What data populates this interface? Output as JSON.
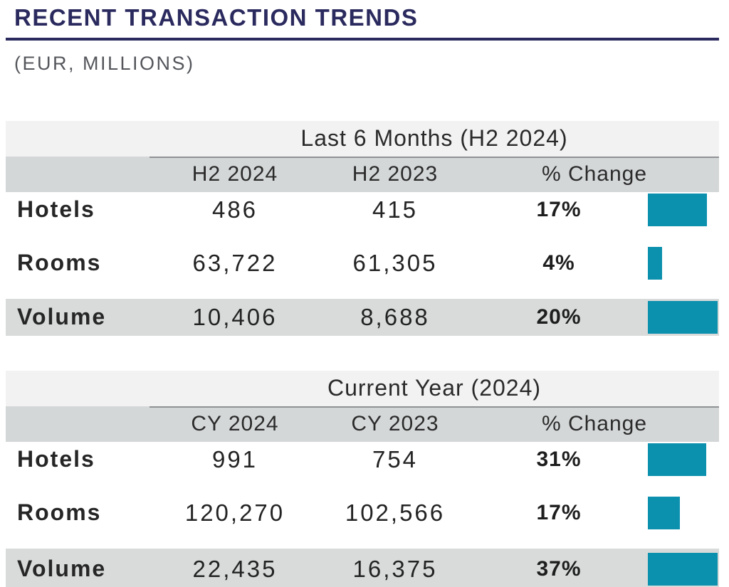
{
  "header": {
    "title": "RECENT TRANSACTION TRENDS",
    "subtitle": "(EUR, MILLIONS)"
  },
  "colors": {
    "navy_accent": "#2b2a5e",
    "teal_bar": "#0b91ae",
    "header_band_gray": "#d4d7d8",
    "title_band_gray": "#f2f2f2",
    "highlight_row_gray": "#d9dbdb"
  },
  "tables": [
    {
      "title": "Last 6 Months (H2 2024)",
      "columns": [
        "H2 2024",
        "H2 2023",
        "% Change"
      ],
      "rows": [
        {
          "label": "Hotels",
          "current": "486",
          "prior": "415",
          "pct_change": "17%",
          "pct_value": 17
        },
        {
          "label": "Rooms",
          "current": "63,722",
          "prior": "61,305",
          "pct_change": "4%",
          "pct_value": 4
        },
        {
          "label": "Volume",
          "current": "10,406",
          "prior": "8,688",
          "pct_change": "20%",
          "pct_value": 20
        }
      ]
    },
    {
      "title": "Current Year (2024)",
      "columns": [
        "CY 2024",
        "CY 2023",
        "% Change"
      ],
      "rows": [
        {
          "label": "Hotels",
          "current": "991",
          "prior": "754",
          "pct_change": "31%",
          "pct_value": 31
        },
        {
          "label": "Rooms",
          "current": "120,270",
          "prior": "102,566",
          "pct_change": "17%",
          "pct_value": 17
        },
        {
          "label": "Volume",
          "current": "22,435",
          "prior": "16,375",
          "pct_change": "37%",
          "pct_value": 37
        }
      ]
    }
  ],
  "chart_data": [
    {
      "type": "table",
      "title": "Last 6 Months (H2 2024)",
      "columns": [
        "",
        "H2 2024",
        "H2 2023",
        "% Change"
      ],
      "rows": [
        [
          "Hotels",
          486,
          415,
          "17%"
        ],
        [
          "Rooms",
          63722,
          61305,
          "4%"
        ],
        [
          "Volume",
          10406,
          8688,
          "20%"
        ]
      ],
      "bar_series": {
        "name": "% Change",
        "values": [
          17,
          4,
          20
        ],
        "color": "#0b91ae",
        "scaling": "relative to table max"
      }
    },
    {
      "type": "table",
      "title": "Current Year (2024)",
      "columns": [
        "",
        "CY 2024",
        "CY 2023",
        "% Change"
      ],
      "rows": [
        [
          "Hotels",
          991,
          754,
          "31%"
        ],
        [
          "Rooms",
          120270,
          102566,
          "17%"
        ],
        [
          "Volume",
          22435,
          16375,
          "37%"
        ]
      ],
      "bar_series": {
        "name": "% Change",
        "values": [
          31,
          17,
          37
        ],
        "color": "#0b91ae",
        "scaling": "relative to table max"
      }
    }
  ]
}
